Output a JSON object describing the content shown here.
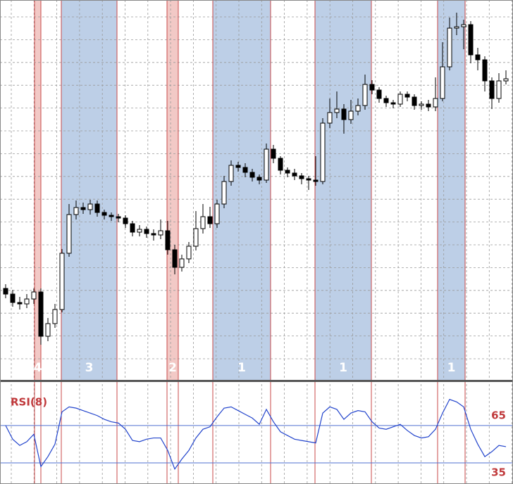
{
  "chart_data": [
    {
      "type": "candlestick",
      "ylim": [
        0,
        540
      ],
      "grid": true,
      "up_color": "#ffffff",
      "down_color": "#000000",
      "open": [
        130,
        122,
        110,
        108,
        115,
        125,
        62,
        80,
        100,
        180,
        235,
        245,
        242,
        250,
        238,
        234,
        232,
        230,
        222,
        210,
        214,
        208,
        206,
        212,
        185,
        160,
        172,
        190,
        215,
        232,
        222,
        250,
        282,
        305,
        302,
        295,
        288,
        284,
        328,
        315,
        298,
        294,
        290,
        286,
        284,
        282,
        365,
        380,
        385,
        370,
        382,
        390,
        420,
        412,
        400,
        394,
        392,
        406,
        402,
        390,
        392,
        388,
        400,
        445,
        500,
        502,
        505,
        462,
        455,
        425,
        400,
        425
      ],
      "high": [
        136,
        128,
        118,
        122,
        130,
        130,
        88,
        108,
        186,
        250,
        255,
        252,
        256,
        255,
        242,
        238,
        236,
        234,
        226,
        220,
        218,
        214,
        228,
        226,
        192,
        178,
        196,
        240,
        250,
        246,
        256,
        290,
        312,
        310,
        308,
        300,
        292,
        336,
        334,
        318,
        302,
        300,
        294,
        290,
        318,
        372,
        400,
        410,
        392,
        398,
        400,
        434,
        426,
        416,
        404,
        398,
        410,
        410,
        406,
        396,
        398,
        430,
        480,
        515,
        522,
        512,
        510,
        472,
        460,
        430,
        436,
        440
      ],
      "low": [
        116,
        104,
        100,
        102,
        108,
        50,
        55,
        74,
        96,
        175,
        228,
        236,
        235,
        232,
        228,
        226,
        224,
        216,
        204,
        204,
        202,
        198,
        200,
        178,
        150,
        154,
        166,
        184,
        208,
        216,
        216,
        244,
        276,
        296,
        288,
        282,
        278,
        280,
        308,
        292,
        288,
        284,
        278,
        270,
        276,
        278,
        358,
        372,
        350,
        364,
        376,
        384,
        406,
        394,
        388,
        386,
        388,
        396,
        384,
        384,
        382,
        382,
        396,
        440,
        490,
        470,
        450,
        440,
        410,
        385,
        394,
        420
      ],
      "close": [
        122,
        110,
        108,
        115,
        125,
        62,
        80,
        100,
        180,
        235,
        245,
        242,
        250,
        238,
        234,
        232,
        230,
        222,
        210,
        214,
        208,
        206,
        212,
        185,
        160,
        172,
        190,
        215,
        232,
        222,
        250,
        282,
        305,
        302,
        295,
        288,
        284,
        328,
        315,
        298,
        294,
        290,
        286,
        284,
        282,
        365,
        380,
        385,
        370,
        382,
        390,
        420,
        412,
        400,
        394,
        392,
        406,
        402,
        390,
        392,
        388,
        400,
        445,
        500,
        502,
        505,
        462,
        455,
        425,
        400,
        425,
        428
      ],
      "zones": [
        {
          "label": "4",
          "from": 4.1,
          "to": 5.0,
          "color": "#f2c9c6"
        },
        {
          "label": "3",
          "from": 7.9,
          "to": 15.8,
          "color": "#bdcfe7"
        },
        {
          "label": "2",
          "from": 22.9,
          "to": 24.5,
          "color": "#f2c9c6"
        },
        {
          "label": "1",
          "from": 29.4,
          "to": 37.6,
          "color": "#bdcfe7"
        },
        {
          "label": "1",
          "from": 43.9,
          "to": 51.9,
          "color": "#bdcfe7"
        },
        {
          "label": "1",
          "from": 61.3,
          "to": 65.2,
          "color": "#bdcfe7"
        }
      ]
    },
    {
      "type": "line",
      "title": "RSI(8)",
      "ylim": [
        18,
        100
      ],
      "color": "#2244cc",
      "level_color": "#4f6fd0",
      "levels": [
        65,
        35
      ],
      "values": [
        65,
        54,
        49,
        52,
        58,
        32,
        40,
        50,
        76,
        80,
        79,
        77,
        75,
        73,
        70,
        68,
        67,
        62,
        53,
        52,
        54,
        55,
        55,
        45,
        30,
        38,
        45,
        55,
        62,
        64,
        72,
        79,
        80,
        77,
        74,
        71,
        66,
        78,
        68,
        60,
        57,
        54,
        53,
        52,
        51,
        75,
        80,
        78,
        70,
        75,
        77,
        76,
        68,
        63,
        62,
        64,
        66,
        61,
        57,
        55,
        56,
        62,
        75,
        86,
        84,
        80,
        62,
        50,
        40,
        44,
        49,
        48
      ]
    }
  ]
}
